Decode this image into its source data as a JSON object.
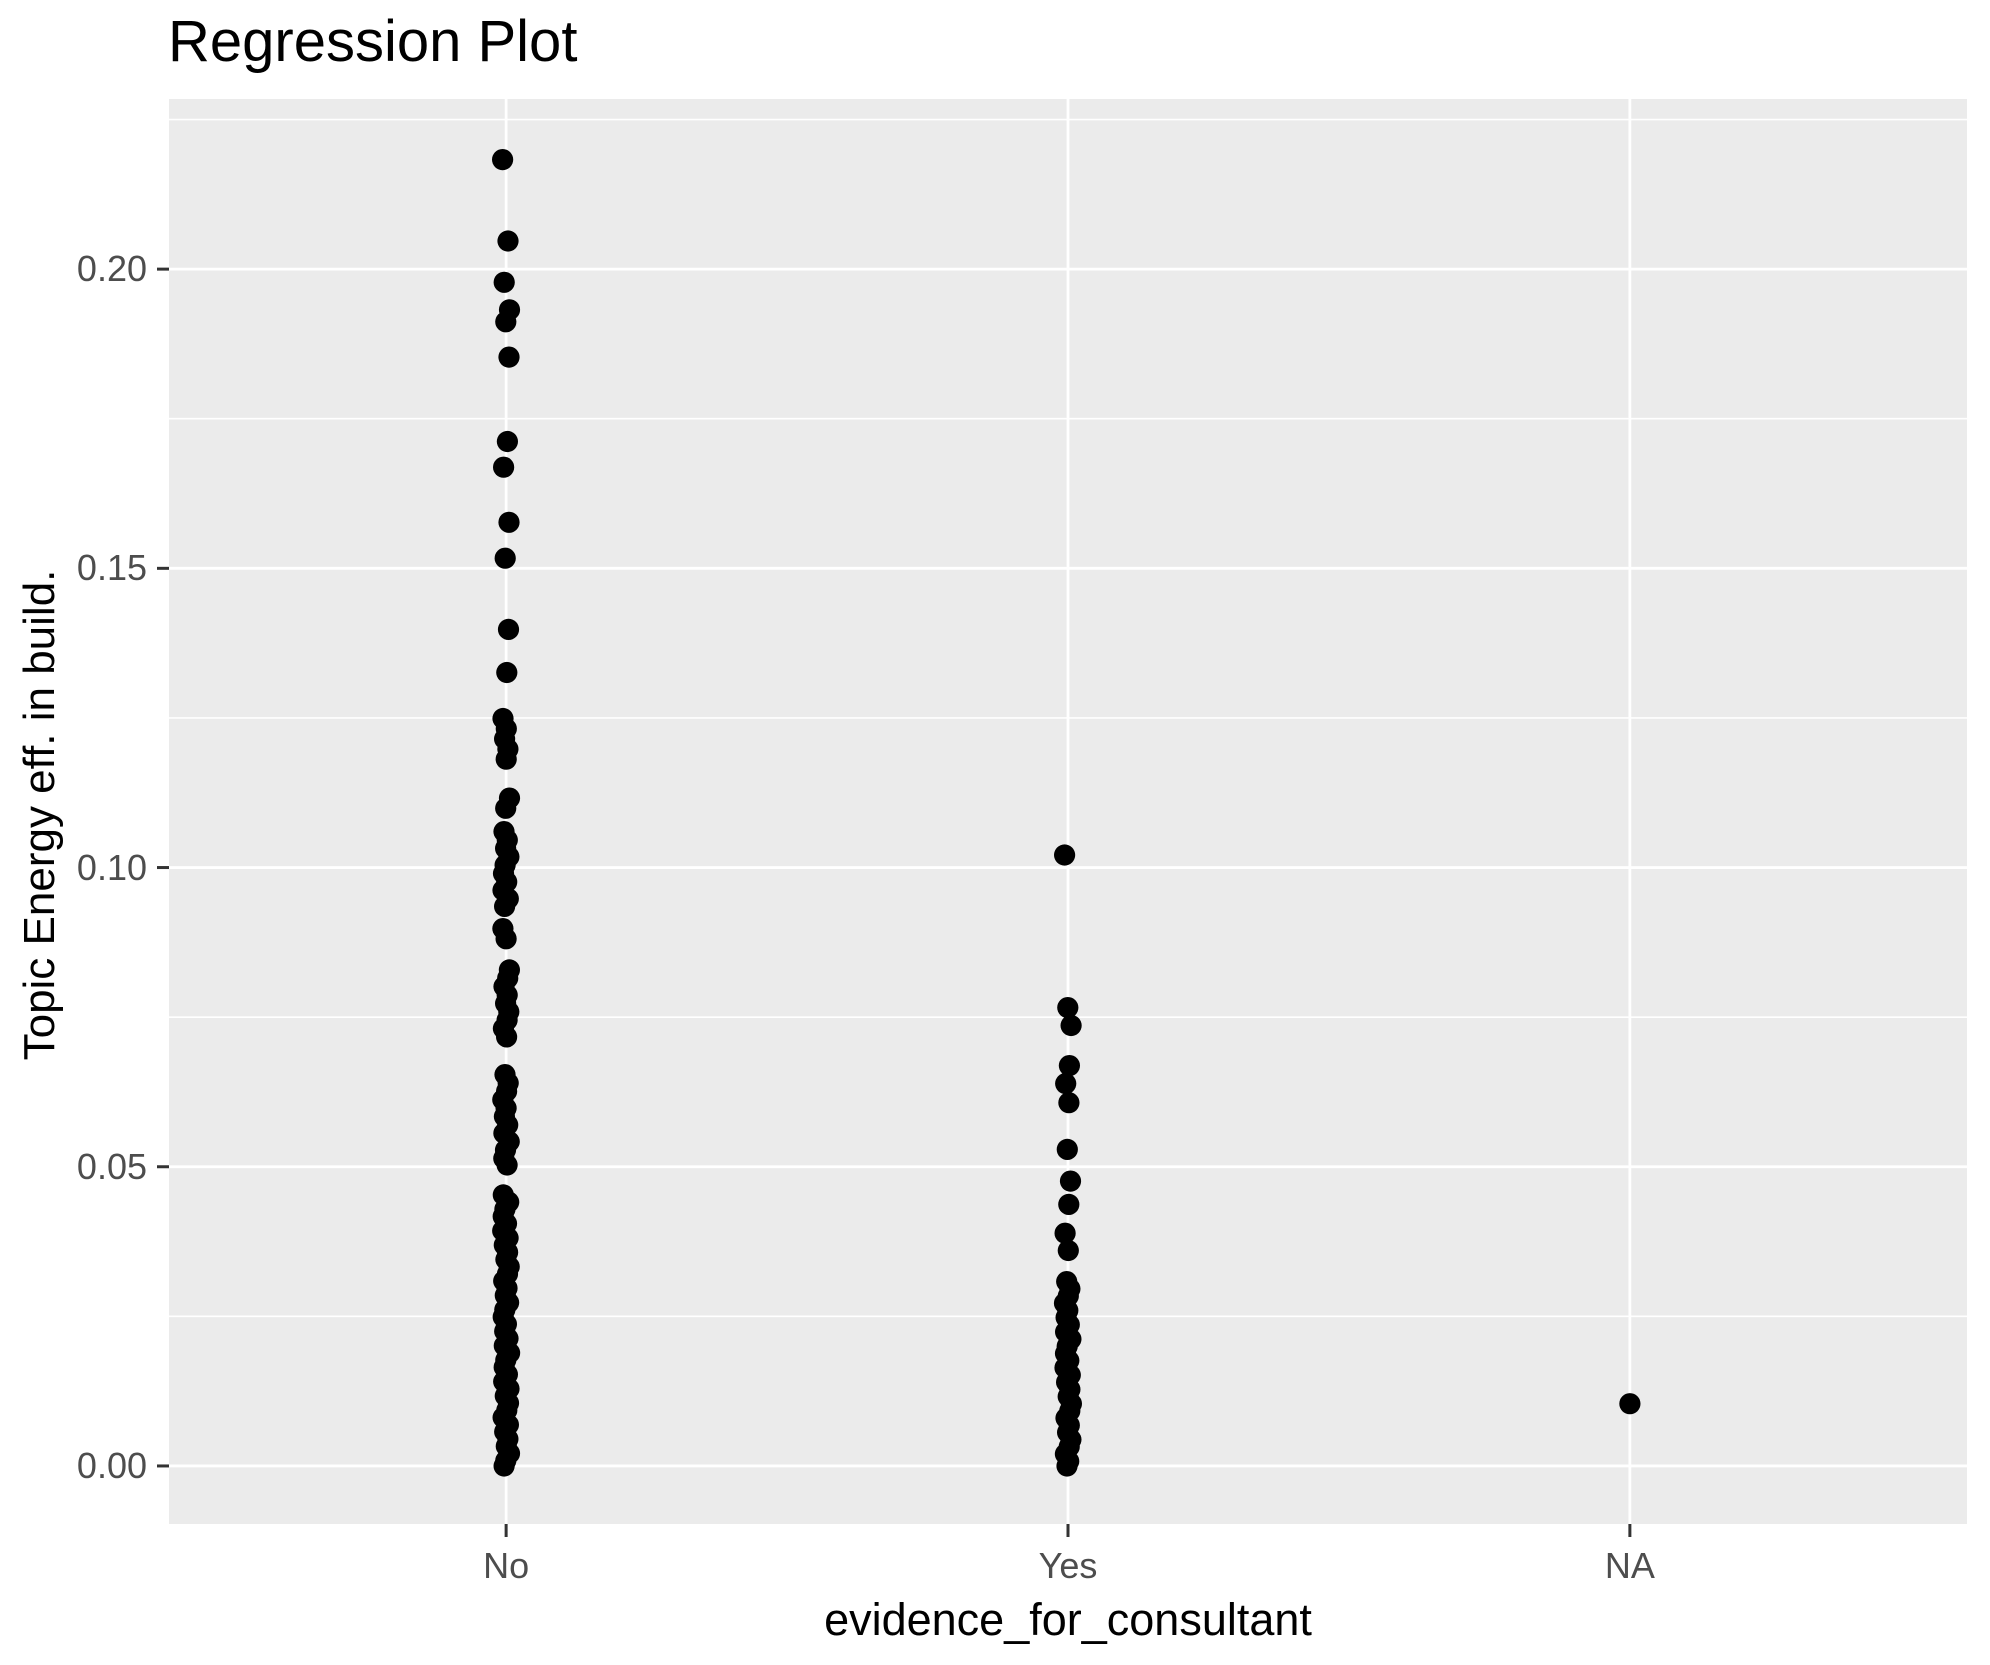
{
  "chart_data": {
    "type": "scatter",
    "title": "Regression Plot",
    "xlabel": "evidence_for_consultant",
    "ylabel": "Topic Energy eff. in build.",
    "categories": [
      "No",
      "Yes",
      "NA"
    ],
    "series": [
      {
        "name": "No",
        "values": [
          0.2183,
          0.2047,
          0.1978,
          0.1932,
          0.1912,
          0.1853,
          0.1712,
          0.1669,
          0.1577,
          0.1517,
          0.1398,
          0.1326,
          0.1249,
          0.1232,
          0.1215,
          0.1198,
          0.1181,
          0.1116,
          0.1099,
          0.106,
          0.1046,
          0.1032,
          0.1018,
          0.1004,
          0.099,
          0.0976,
          0.0962,
          0.0948,
          0.0935,
          0.0898,
          0.0881,
          0.0829,
          0.0815,
          0.0801,
          0.0787,
          0.0773,
          0.0759,
          0.0745,
          0.0731,
          0.0717,
          0.0654,
          0.064,
          0.0626,
          0.0612,
          0.0598,
          0.0584,
          0.057,
          0.0556,
          0.0542,
          0.0528,
          0.0514,
          0.0503,
          0.0453,
          0.0441,
          0.0429,
          0.0417,
          0.0405,
          0.0393,
          0.0381,
          0.0369,
          0.0357,
          0.0345,
          0.0333,
          0.0321,
          0.0309,
          0.0297,
          0.0285,
          0.0273,
          0.0261,
          0.0249,
          0.0237,
          0.0225,
          0.0213,
          0.0201,
          0.0189,
          0.0177,
          0.0165,
          0.0153,
          0.0141,
          0.0129,
          0.0117,
          0.0105,
          0.0093,
          0.0081,
          0.0069,
          0.0057,
          0.0045,
          0.0033,
          0.0021,
          0.0009,
          0.0
        ]
      },
      {
        "name": "Yes",
        "values": [
          0.1021,
          0.0766,
          0.0736,
          0.0669,
          0.0639,
          0.0607,
          0.0529,
          0.0476,
          0.0437,
          0.0389,
          0.036,
          0.0308,
          0.0296,
          0.0284,
          0.0272,
          0.026,
          0.0248,
          0.0236,
          0.0224,
          0.0212,
          0.02,
          0.0188,
          0.0176,
          0.0164,
          0.0152,
          0.014,
          0.0128,
          0.0116,
          0.0104,
          0.0092,
          0.008,
          0.0068,
          0.0056,
          0.0044,
          0.0032,
          0.002,
          0.0008,
          0.0
        ]
      },
      {
        "name": "NA",
        "values": [
          0.0104
        ]
      }
    ],
    "y_ticks": [
      0.0,
      0.05,
      0.1,
      0.15,
      0.2
    ],
    "y_tick_labels": [
      "0.00",
      "0.05",
      "0.10",
      "0.15",
      "0.20"
    ],
    "y_minor_ticks": [
      0.025,
      0.075,
      0.125,
      0.175,
      0.225
    ],
    "ylim": [
      -0.0097,
      0.22843
    ],
    "grid": true,
    "legend_position": "none",
    "colors": {
      "figure_bg": "#FFFFFF",
      "panel_bg": "#EBEBEB",
      "grid": "#FFFFFF",
      "point": "#000000",
      "tick_label": "#4D4D4D",
      "tick_mark": "#333333",
      "axis_title": "#000000",
      "title": "#000000"
    }
  }
}
